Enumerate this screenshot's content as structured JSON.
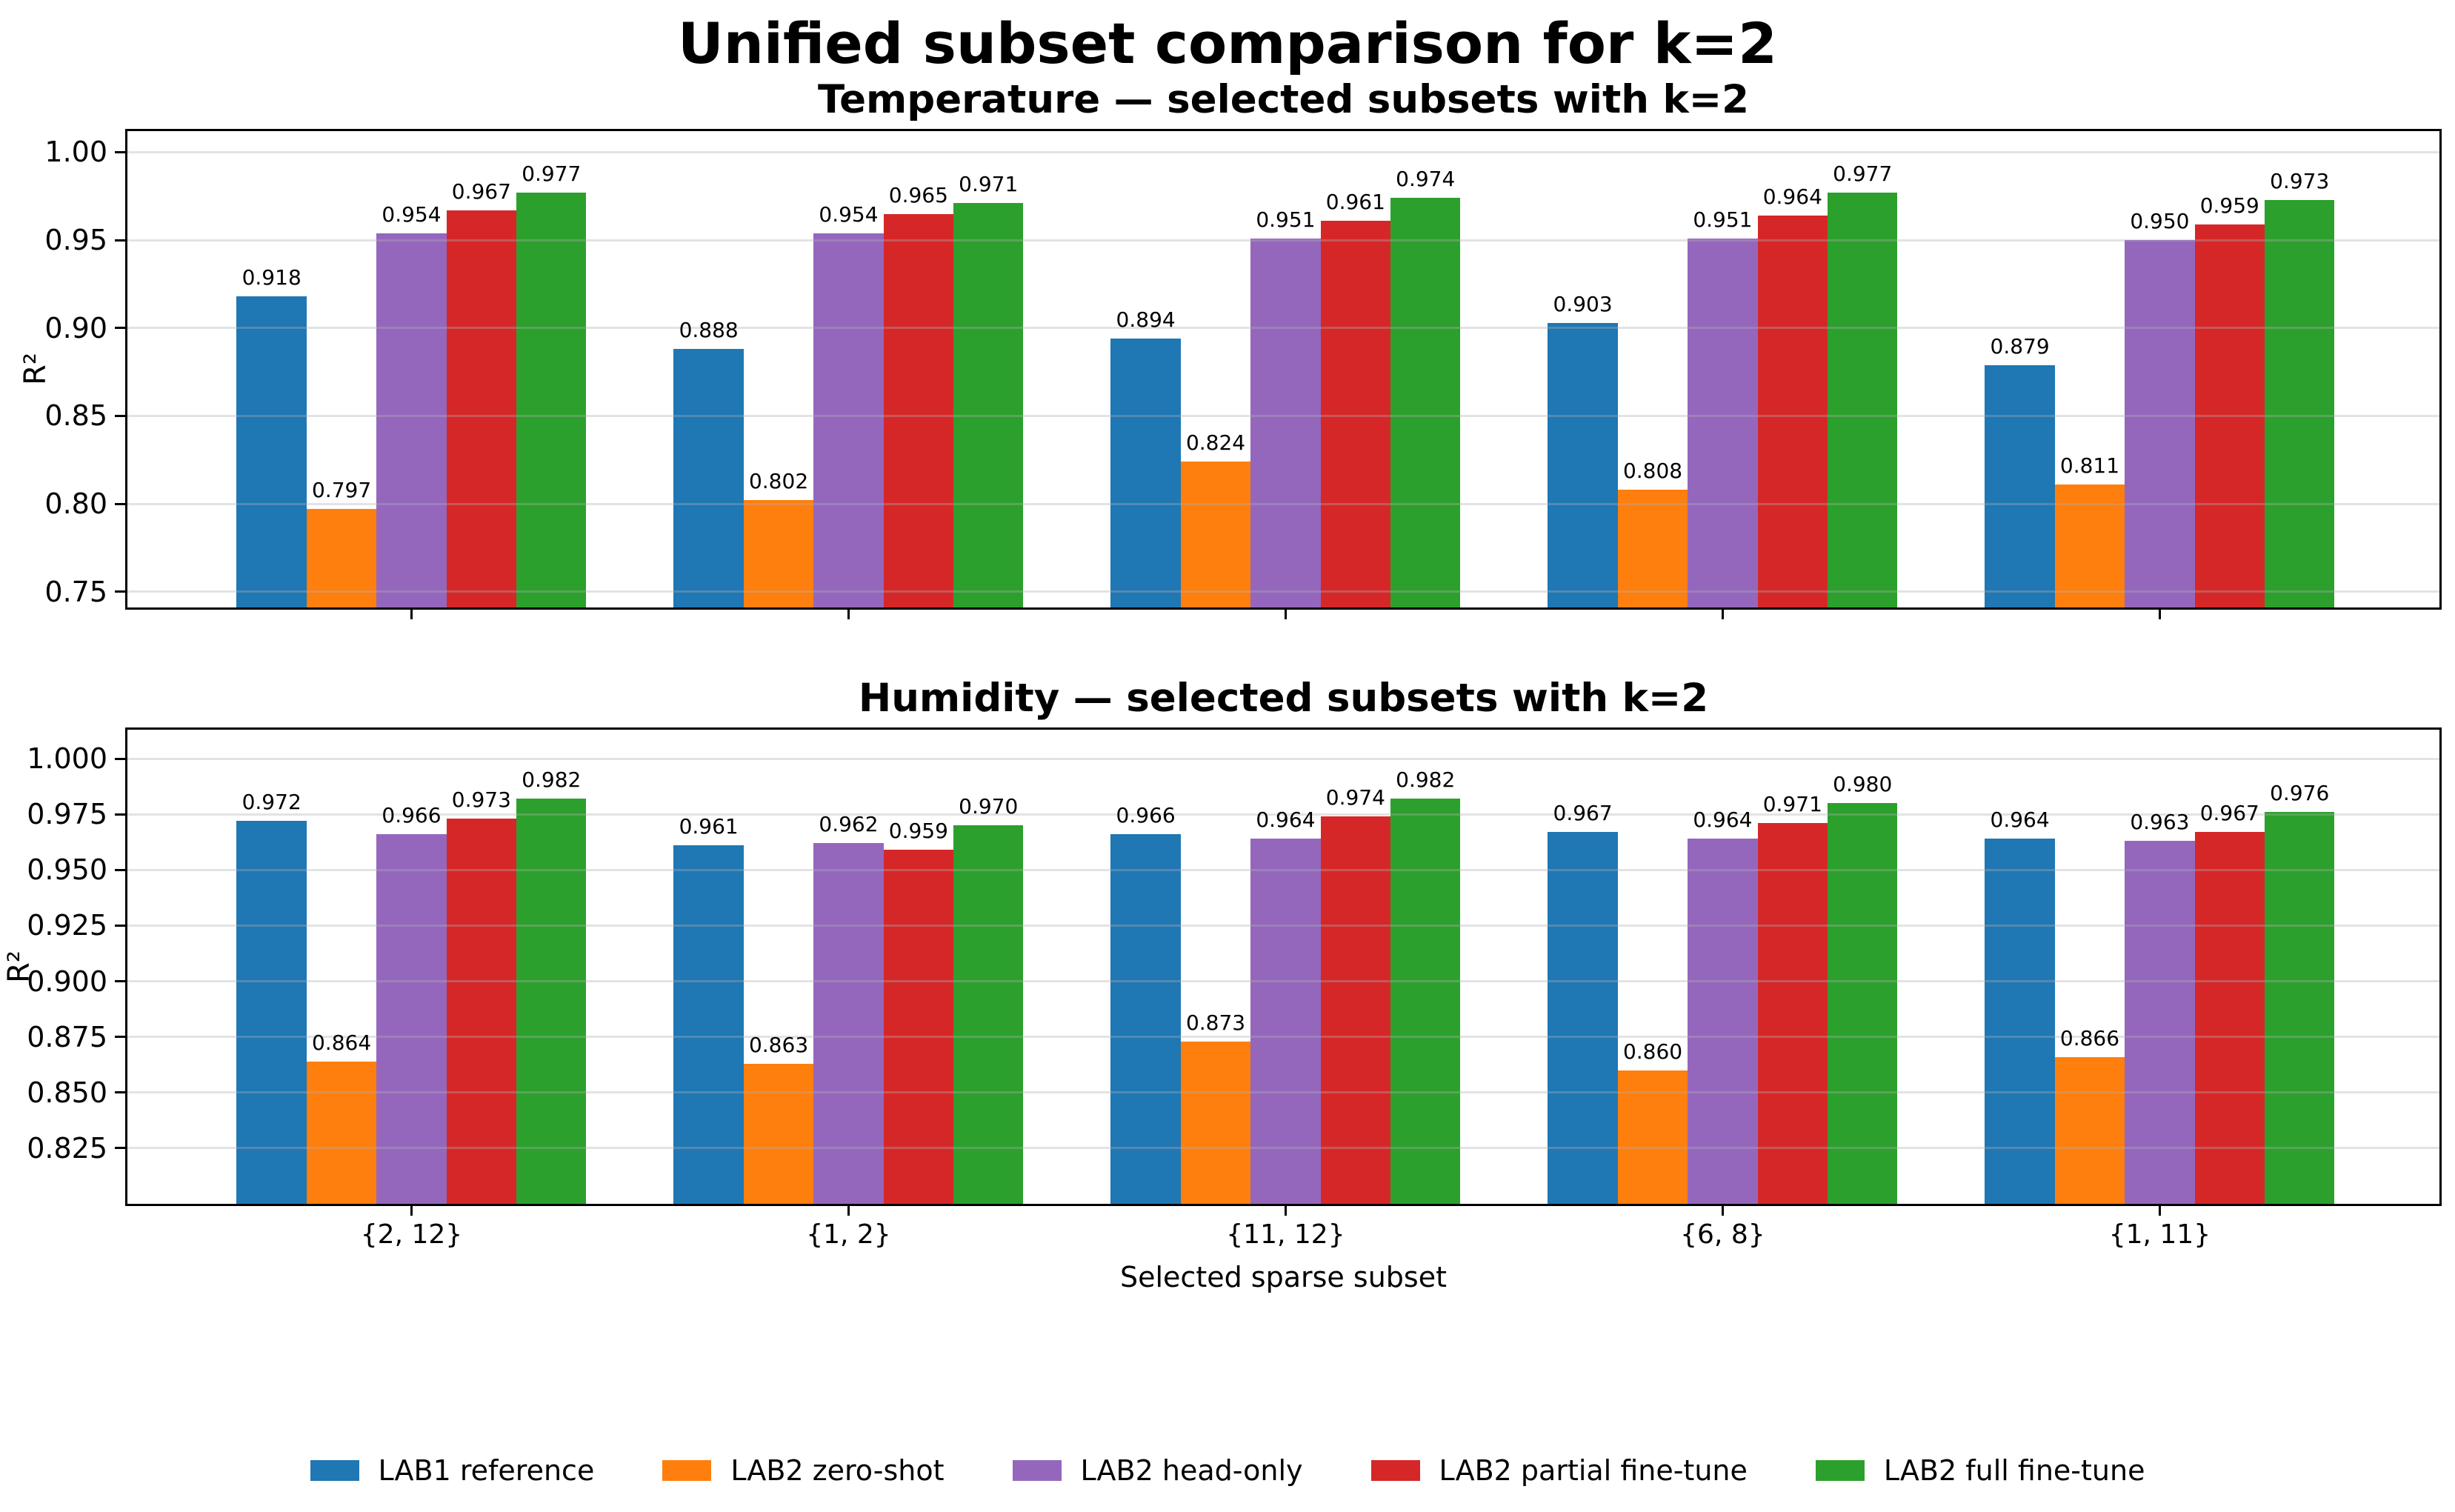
{
  "figure": {
    "title": "Unified subset comparison for k=2",
    "xlabel": "Selected sparse subset",
    "ylabel": "R²"
  },
  "legend": {
    "items": [
      {
        "label": "LAB1 reference",
        "color": "#1f77b4"
      },
      {
        "label": "LAB2 zero-shot",
        "color": "#ff7f0e"
      },
      {
        "label": "LAB2 head-only",
        "color": "#9467bd"
      },
      {
        "label": "LAB2 partial fine-tune",
        "color": "#d62728"
      },
      {
        "label": "LAB2 full fine-tune",
        "color": "#2ca02c"
      }
    ]
  },
  "chart_data": [
    {
      "type": "bar",
      "title": "Temperature — selected subsets with k=2",
      "ylabel": "R²",
      "xlabel": "",
      "grid": true,
      "legend_position": "below-figure",
      "categories": [
        "{2, 12}",
        "{1, 2}",
        "{11, 12}",
        "{6, 8}",
        "{1, 11}"
      ],
      "series": [
        {
          "name": "LAB1 reference",
          "color": "#1f77b4",
          "values": [
            0.918,
            0.888,
            0.894,
            0.903,
            0.879
          ]
        },
        {
          "name": "LAB2 zero-shot",
          "color": "#ff7f0e",
          "values": [
            0.797,
            0.802,
            0.824,
            0.808,
            0.811
          ]
        },
        {
          "name": "LAB2 head-only",
          "color": "#9467bd",
          "values": [
            0.954,
            0.954,
            0.951,
            0.951,
            0.95
          ]
        },
        {
          "name": "LAB2 partial fine-tune",
          "color": "#d62728",
          "values": [
            0.967,
            0.965,
            0.961,
            0.964,
            0.959
          ]
        },
        {
          "name": "LAB2 full fine-tune",
          "color": "#2ca02c",
          "values": [
            0.977,
            0.971,
            0.974,
            0.977,
            0.973
          ]
        }
      ],
      "ylim": [
        0.741,
        1.012
      ],
      "yticks": [
        {
          "value": 0.75,
          "label": "0.75"
        },
        {
          "value": 0.8,
          "label": "0.80"
        },
        {
          "value": 0.85,
          "label": "0.85"
        },
        {
          "value": 0.9,
          "label": "0.90"
        },
        {
          "value": 0.95,
          "label": "0.95"
        },
        {
          "value": 1.0,
          "label": "1.00"
        }
      ],
      "show_x_tick_labels": false,
      "bar_label_decimals": 3
    },
    {
      "type": "bar",
      "title": "Humidity — selected subsets with k=2",
      "ylabel": "R²",
      "xlabel": "Selected sparse subset",
      "grid": true,
      "legend_position": "below-figure",
      "categories": [
        "{2, 12}",
        "{1, 2}",
        "{11, 12}",
        "{6, 8}",
        "{1, 11}"
      ],
      "series": [
        {
          "name": "LAB1 reference",
          "color": "#1f77b4",
          "values": [
            0.972,
            0.961,
            0.966,
            0.967,
            0.964
          ]
        },
        {
          "name": "LAB2 zero-shot",
          "color": "#ff7f0e",
          "values": [
            0.864,
            0.863,
            0.873,
            0.86,
            0.866
          ]
        },
        {
          "name": "LAB2 head-only",
          "color": "#9467bd",
          "values": [
            0.966,
            0.962,
            0.964,
            0.964,
            0.963
          ]
        },
        {
          "name": "LAB2 partial fine-tune",
          "color": "#d62728",
          "values": [
            0.973,
            0.959,
            0.974,
            0.971,
            0.967
          ]
        },
        {
          "name": "LAB2 full fine-tune",
          "color": "#2ca02c",
          "values": [
            0.982,
            0.97,
            0.982,
            0.98,
            0.976
          ]
        }
      ],
      "ylim": [
        0.8,
        1.013
      ],
      "yticks": [
        {
          "value": 0.825,
          "label": "0.825"
        },
        {
          "value": 0.85,
          "label": "0.850"
        },
        {
          "value": 0.875,
          "label": "0.875"
        },
        {
          "value": 0.9,
          "label": "0.900"
        },
        {
          "value": 0.925,
          "label": "0.925"
        },
        {
          "value": 0.95,
          "label": "0.950"
        },
        {
          "value": 0.975,
          "label": "0.975"
        },
        {
          "value": 1.0,
          "label": "1.000"
        }
      ],
      "show_x_tick_labels": true,
      "bar_label_decimals": 3
    }
  ]
}
